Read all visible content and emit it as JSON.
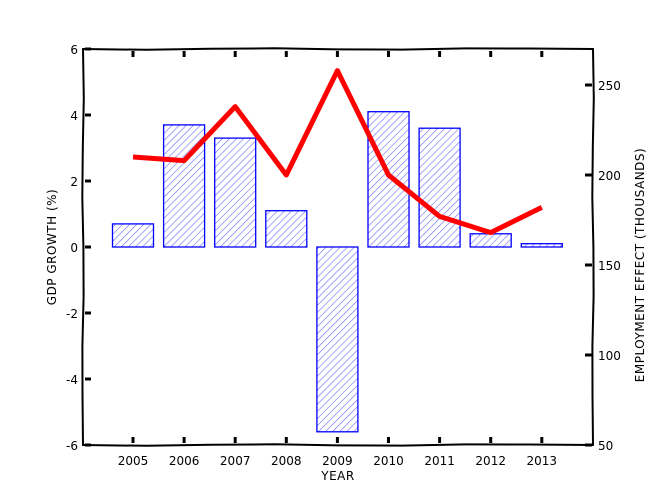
{
  "chart_data": {
    "type": "bar",
    "title": "",
    "xlabel": "YEAR",
    "ylabel": "GDP GROWTH (%)",
    "y2label": "EMPLOYMENT EFFECT (THOUSANDS)",
    "categories": [
      "2005",
      "2006",
      "2007",
      "2008",
      "2009",
      "2010",
      "2011",
      "2012",
      "2013"
    ],
    "series": [
      {
        "name": "GDP Growth (%)",
        "type": "bar",
        "axis": "left",
        "color": "#0000ff",
        "fill": "hatched",
        "values": [
          0.7,
          3.7,
          3.3,
          1.1,
          -5.6,
          4.1,
          3.6,
          0.4,
          0.1
        ]
      },
      {
        "name": "Employment Effect (thousands)",
        "type": "line",
        "axis": "right",
        "color": "#ff0000",
        "values": [
          210,
          208,
          238,
          200,
          258,
          200,
          177,
          168,
          182
        ]
      }
    ],
    "ylim": [
      -6,
      6
    ],
    "yticks": [
      -6,
      -4,
      -2,
      0,
      2,
      4,
      6
    ],
    "y2lim": [
      50,
      270
    ],
    "y2ticks": [
      50,
      100,
      150,
      200,
      250
    ],
    "grid": false,
    "legend": null,
    "style": "xkcd"
  }
}
